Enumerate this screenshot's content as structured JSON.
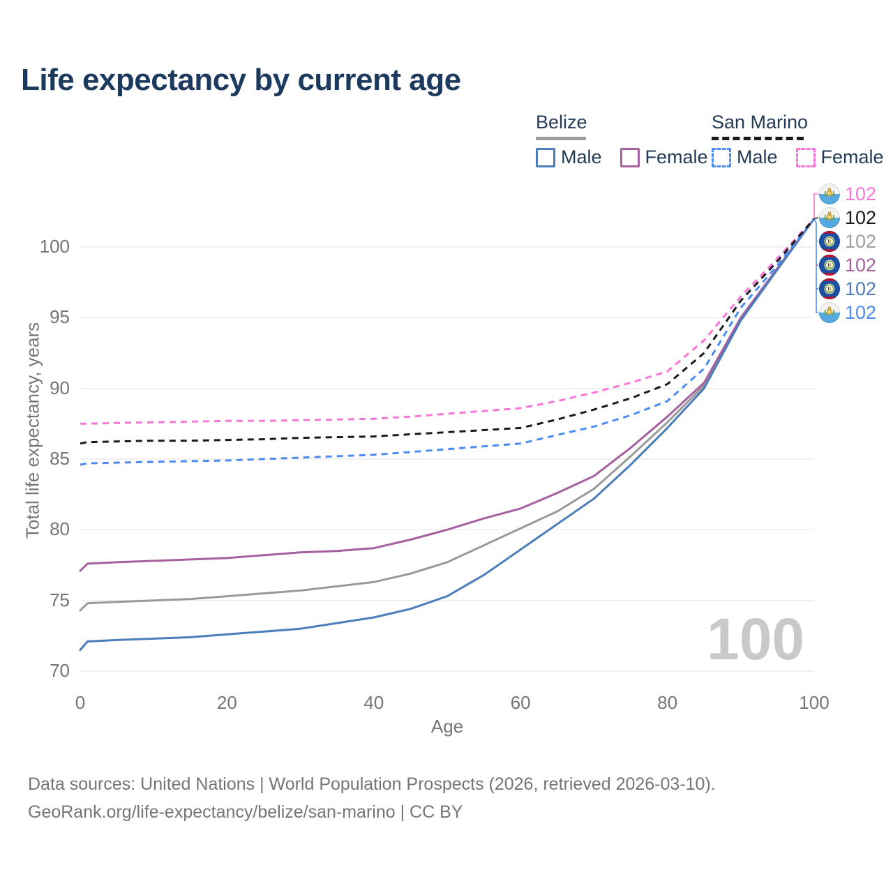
{
  "title": "Life expectancy by current age",
  "watermark": "100",
  "legend": {
    "groups": [
      {
        "country": "Belize",
        "line_style": "solid",
        "underline_color": "#9e9e9e",
        "items": [
          {
            "label": "Male",
            "color": "#4a7dba",
            "dashed": false
          },
          {
            "label": "Female",
            "color": "#a5619f",
            "dashed": false
          }
        ]
      },
      {
        "country": "San Marino",
        "line_style": "dashed",
        "underline_color": "#1a1a1a",
        "items": [
          {
            "label": "Male",
            "color": "#4b8bf4",
            "dashed": true
          },
          {
            "label": "Female",
            "color": "#fb74d8",
            "dashed": true
          }
        ]
      }
    ]
  },
  "chart_data": {
    "type": "line",
    "title": "Life expectancy by current age",
    "xlabel": "Age",
    "ylabel": "Total life expectancy, years",
    "xlim": [
      0,
      100
    ],
    "ylim": [
      69.6,
      102.6
    ],
    "xticks": [
      0,
      20,
      40,
      60,
      80,
      100
    ],
    "yticks": [
      70,
      75,
      80,
      85,
      90,
      95,
      100
    ],
    "grid": "horizontal",
    "legend_position": "top-right",
    "x": [
      0,
      1,
      5,
      10,
      15,
      20,
      25,
      30,
      35,
      40,
      45,
      50,
      55,
      60,
      65,
      70,
      75,
      80,
      85,
      90,
      95,
      100
    ],
    "series": [
      {
        "name": "Belize Total",
        "country": "Belize",
        "sex": "Both",
        "color": "#999999",
        "dash": false,
        "values": [
          74.3,
          74.8,
          74.9,
          75.0,
          75.1,
          75.3,
          75.5,
          75.7,
          76.0,
          76.3,
          76.9,
          77.7,
          78.9,
          80.1,
          81.3,
          82.9,
          85.2,
          87.6,
          90.2,
          94.9,
          98.5,
          102
        ]
      },
      {
        "name": "Belize Female",
        "country": "Belize",
        "sex": "Female",
        "color": "#a5619f",
        "dash": false,
        "values": [
          77.1,
          77.6,
          77.7,
          77.8,
          77.9,
          78.0,
          78.2,
          78.4,
          78.5,
          78.7,
          79.3,
          80.0,
          80.8,
          81.5,
          82.6,
          83.8,
          85.8,
          88.0,
          90.4,
          95.0,
          98.5,
          102
        ]
      },
      {
        "name": "Belize Male",
        "country": "Belize",
        "sex": "Male",
        "color": "#4a7dba",
        "dash": false,
        "values": [
          71.5,
          72.1,
          72.2,
          72.3,
          72.4,
          72.6,
          72.8,
          73.0,
          73.4,
          73.8,
          74.4,
          75.3,
          76.8,
          78.6,
          80.4,
          82.2,
          84.6,
          87.2,
          90.0,
          94.8,
          98.4,
          102
        ]
      },
      {
        "name": "San Marino Male",
        "country": "San Marino",
        "sex": "Male",
        "color": "#4b8bf4",
        "dash": true,
        "values": [
          84.6,
          84.7,
          84.75,
          84.8,
          84.85,
          84.9,
          85.0,
          85.1,
          85.2,
          85.3,
          85.5,
          85.7,
          85.9,
          86.1,
          86.7,
          87.3,
          88.1,
          89.1,
          91.4,
          95.7,
          98.7,
          102
        ]
      },
      {
        "name": "San Marino Female",
        "country": "San Marino",
        "sex": "Female",
        "color": "#fb74d8",
        "dash": true,
        "values": [
          87.5,
          87.5,
          87.55,
          87.6,
          87.65,
          87.7,
          87.7,
          87.75,
          87.8,
          87.85,
          88.0,
          88.2,
          88.4,
          88.6,
          89.1,
          89.7,
          90.4,
          91.2,
          93.4,
          96.5,
          99.2,
          102
        ]
      },
      {
        "name": "San Marino Total",
        "country": "San Marino",
        "sex": "Both",
        "color": "#1a1a1a",
        "dash": true,
        "values": [
          86.1,
          86.2,
          86.25,
          86.3,
          86.3,
          86.35,
          86.4,
          86.5,
          86.55,
          86.6,
          86.75,
          86.9,
          87.05,
          87.2,
          87.8,
          88.5,
          89.3,
          90.3,
          92.5,
          96.2,
          99.0,
          102
        ]
      }
    ],
    "end_value_age": 100
  },
  "axes": {
    "x": {
      "label": "Age",
      "ticks": [
        "0",
        "20",
        "40",
        "60",
        "80",
        "100"
      ]
    },
    "y": {
      "label": "Total life expectancy, years",
      "ticks": [
        "70",
        "75",
        "80",
        "85",
        "90",
        "95",
        "100"
      ]
    }
  },
  "end_labels": [
    {
      "value": "102",
      "color": "#fb74d8",
      "flag": "san-marino",
      "series": "San Marino Female"
    },
    {
      "value": "102",
      "color": "#1a1a1a",
      "flag": "san-marino",
      "series": "San Marino Total"
    },
    {
      "value": "102",
      "color": "#9e9e9e",
      "flag": "belize",
      "series": "Belize Total"
    },
    {
      "value": "102",
      "color": "#a5619f",
      "flag": "belize",
      "series": "Belize Female"
    },
    {
      "value": "102",
      "color": "#4a7dba",
      "flag": "belize",
      "series": "Belize Male"
    },
    {
      "value": "102",
      "color": "#4b8bf4",
      "flag": "san-marino",
      "series": "San Marino Male"
    }
  ],
  "footer": {
    "line1": "Data sources: United Nations | World Population Prospects (2026, retrieved 2026-03-10).",
    "line2": "GeoRank.org/life-expectancy/belize/san-marino | CC BY"
  }
}
